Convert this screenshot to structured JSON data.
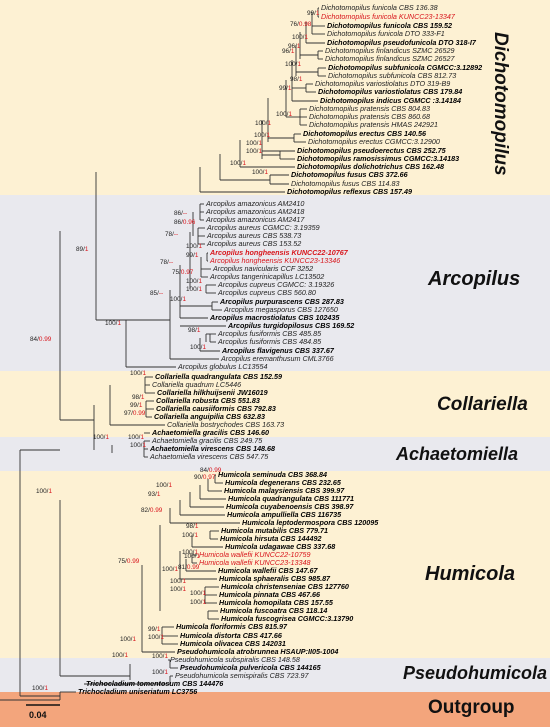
{
  "colors": {
    "band_dichotomopilus": "#fdf1d3",
    "band_arcopilus": "#e9e9ee",
    "band_collariella": "#fdf1d3",
    "band_achaetomiella": "#e9e9ee",
    "band_humicola": "#fdf1d3",
    "band_pseudohumicola": "#e9e9ee",
    "band_outgroup": "#f3a57c",
    "new_taxa": "#d8141b",
    "support_second": "#d8141b",
    "branch": "#333333"
  },
  "clades": [
    {
      "key": "dichotomopilus",
      "name": "Dichotomopilus"
    },
    {
      "key": "arcopilus",
      "name": "Arcopilus"
    },
    {
      "key": "collariella",
      "name": "Collariella"
    },
    {
      "key": "achaetomiella",
      "name": "Achaetomiella"
    },
    {
      "key": "humicola",
      "name": "Humicola"
    },
    {
      "key": "pseudohumicola",
      "name": "Pseudohumicola"
    },
    {
      "key": "outgroup",
      "name": "Outgroup"
    }
  ],
  "scale_bar": {
    "label": "0.04"
  },
  "taxa": [
    {
      "label": "Dichotomopilus funicola CBS 136.38",
      "style": ""
    },
    {
      "label": "Dichotomopilus funicola KUNCC23-13347",
      "style": "r"
    },
    {
      "label": "Dichotomopilus funicola CBS 159.52",
      "style": "b"
    },
    {
      "label": "Dichotomopilus funicola DTO 333-F1",
      "style": ""
    },
    {
      "label": "Dichotomopilus pseudofunicola DTO 318-I7",
      "style": "b"
    },
    {
      "label": "Dichotomopilus finlandicus SZMC 26529",
      "style": ""
    },
    {
      "label": "Dichotomopilus finlandicus SZMC 26527",
      "style": ""
    },
    {
      "label": "Dichotomopilus subfunicola CGMCC:3.12892",
      "style": "b"
    },
    {
      "label": "Dichotomopilus subfunicola CBS 812.73",
      "style": ""
    },
    {
      "label": "Dichotomopilus variostiolatus DTO 319-B9",
      "style": ""
    },
    {
      "label": "Dichotomopilus variostiolatus CBS 179.84",
      "style": "b"
    },
    {
      "label": "Dichotomopilus indicus CGMCC :3.14184",
      "style": "b"
    },
    {
      "label": "Dichotomopilus pratensis CBS 804.83",
      "style": ""
    },
    {
      "label": "Dichotomopilus pratensis CBS 860.68",
      "style": ""
    },
    {
      "label": "Dichotomopilus pratensis HMAS 242921",
      "style": ""
    },
    {
      "label": "Dichotomopilus erectus CBS 140.56",
      "style": "b"
    },
    {
      "label": "Dichotomopilus erectus CGMCC:3.12900",
      "style": ""
    },
    {
      "label": "Dichotomopilus pseudoerectus CBS 252.75",
      "style": "b"
    },
    {
      "label": "Dichotomopilus ramosissimus CGMCC:3.14183",
      "style": "b"
    },
    {
      "label": "Dichotomopilus dolichotrichus CBS 162.48",
      "style": "b"
    },
    {
      "label": "Dichotomopilus fusus CBS 372.66",
      "style": "b"
    },
    {
      "label": "Dichotomopilus fusus CBS 114.83",
      "style": ""
    },
    {
      "label": "Dichotomopilus reflexus CBS 157.49",
      "style": "b"
    },
    {
      "label": "Arcopilus amazonicus AM2410",
      "style": ""
    },
    {
      "label": "Arcopilus amazonicus AM2418",
      "style": ""
    },
    {
      "label": "Arcopilus amazonicus AM2417",
      "style": ""
    },
    {
      "label": "Arcopilus aureus CGMCC: 3.19359",
      "style": ""
    },
    {
      "label": "Arcopilus aureus CBS 538.73",
      "style": ""
    },
    {
      "label": "Arcopilus aureus CBS 153.52",
      "style": ""
    },
    {
      "label": "Arcopilus hongheensis KUNCC22-10767",
      "style": "b r"
    },
    {
      "label": "Arcopilus hongheensis KUNCC23-13346",
      "style": "r"
    },
    {
      "label": "Arcopilus navicularis CCF 3252",
      "style": ""
    },
    {
      "label": "Arcopilus tangerinicapillus LC13502",
      "style": ""
    },
    {
      "label": "Arcopilus cupreus CGMCC: 3.19326",
      "style": ""
    },
    {
      "label": "Arcopilus cupreus CBS 560.80",
      "style": ""
    },
    {
      "label": "Arcopilus purpurascens CBS 287.83",
      "style": "b"
    },
    {
      "label": "Arcopilus megasporus CBS 127650",
      "style": ""
    },
    {
      "label": "Arcopilus macrostiolatus CBS 102435",
      "style": "b"
    },
    {
      "label": "Arcopilus turgidopilosus CBS 169.52",
      "style": "b"
    },
    {
      "label": "Arcopilus fusiformis CBS 485.85",
      "style": ""
    },
    {
      "label": "Arcopilus fusiformis CBS 484.85",
      "style": ""
    },
    {
      "label": "Arcopilus flavigenus CBS 337.67",
      "style": "b"
    },
    {
      "label": "Arcopilus eremanthusum CML3766",
      "style": ""
    },
    {
      "label": "Arcopilus globulus LC13554",
      "style": ""
    },
    {
      "label": "Collariella quadrangulata CBS 152.59",
      "style": "b"
    },
    {
      "label": "Collariella quadrum LC5446",
      "style": ""
    },
    {
      "label": "Collariella hilkhuijsenii JW16019",
      "style": "b"
    },
    {
      "label": "Collariella robusta CBS 551.83",
      "style": "b"
    },
    {
      "label": "Collariella causiiformis CBS 792.83",
      "style": "b"
    },
    {
      "label": "Collariella anguipilia CBS 632.83",
      "style": "b"
    },
    {
      "label": "Collariella bostrychodes CBS 163.73",
      "style": ""
    },
    {
      "label": "Achaetomiella gracilis CBS 146.60",
      "style": "b"
    },
    {
      "label": "Achaetomiella gracilis CBS 249.75",
      "style": ""
    },
    {
      "label": "Achaetomiella virescens CBS 148.68",
      "style": "b"
    },
    {
      "label": "Achaetomiella virescens CBS 547.75",
      "style": ""
    },
    {
      "label": "Humicola seminuda CBS 368.84",
      "style": "b"
    },
    {
      "label": "Humicola degenerans CBS 232.65",
      "style": "b"
    },
    {
      "label": "Humicola malaysiensis CBS 399.97",
      "style": "b"
    },
    {
      "label": "Humicola quadrangulata CBS 111771",
      "style": "b"
    },
    {
      "label": "Humicola cuyabenoensis CBS 398.97",
      "style": "b"
    },
    {
      "label": "Humicola ampulliella CBS 116735",
      "style": "b"
    },
    {
      "label": "Humicola leptodermospora CBS 120095",
      "style": "b"
    },
    {
      "label": "Humicola mutabilis CBS 779.71",
      "style": "b"
    },
    {
      "label": "Humicola hirsuta CBS 144492",
      "style": "b"
    },
    {
      "label": "Humicola udagawae CBS 337.68",
      "style": "b"
    },
    {
      "label": "Humicola wallefii KUNCC22-10759",
      "style": "r"
    },
    {
      "label": "Humicola wallefii KUNCC23-13348",
      "style": "r"
    },
    {
      "label": "Humicola wallefii CBS 147.67",
      "style": "b"
    },
    {
      "label": "Humicola sphaeralis CBS 985.87",
      "style": "b"
    },
    {
      "label": "Humicola christenseniae CBS 127760",
      "style": "b"
    },
    {
      "label": "Humicola pinnata CBS 467.66",
      "style": "b"
    },
    {
      "label": "Humicola homopilata CBS 157.55",
      "style": "b"
    },
    {
      "label": "Humicola fuscoatra CBS 118.14",
      "style": "b"
    },
    {
      "label": "Humicola fuscogrisea CGMCC:3.13790",
      "style": "b"
    },
    {
      "label": "Humicola floriformis CBS 815.97",
      "style": "b"
    },
    {
      "label": "Humicola distorta CBS 417.66",
      "style": "b"
    },
    {
      "label": "Humicola olivacea CBS 142031",
      "style": "b"
    },
    {
      "label": "Pseudohumicola atrobrunnea HSAUP:II05-1004",
      "style": "b"
    },
    {
      "label": "Pseudohumicola subspiralis CBS 148.58",
      "style": ""
    },
    {
      "label": "Pseudohumicola pulvericola CBS 144165",
      "style": "b"
    },
    {
      "label": "Pseudohumicola semispiralis CBS 723.97",
      "style": ""
    },
    {
      "label": "Trichocladium tomentosum CBS 144476",
      "style": "b"
    },
    {
      "label": "Trichocladium uniseriatum LC3756",
      "style": "b"
    }
  ],
  "supports": [
    {
      "a": "99/",
      "b": "1"
    },
    {
      "a": "76/",
      "b": "0.98"
    },
    {
      "a": "100/",
      "b": "1"
    },
    {
      "a": "96/",
      "b": "1"
    },
    {
      "a": "96/",
      "b": "1"
    },
    {
      "a": "100/",
      "b": "1"
    },
    {
      "a": "98/",
      "b": "1"
    },
    {
      "a": "99/",
      "b": "1"
    },
    {
      "a": "100/",
      "b": "1"
    },
    {
      "a": "100/",
      "b": "1"
    },
    {
      "a": "100/",
      "b": "1"
    },
    {
      "a": "100/",
      "b": "1"
    },
    {
      "a": "100/",
      "b": "1"
    },
    {
      "a": "100/",
      "b": "1"
    },
    {
      "a": "100/",
      "b": "1"
    },
    {
      "a": "86/",
      "b": "--"
    },
    {
      "a": "86/",
      "b": "0.96"
    },
    {
      "a": "78/",
      "b": "--"
    },
    {
      "a": "100/",
      "b": "1"
    },
    {
      "a": "99/",
      "b": "1"
    },
    {
      "a": "78/",
      "b": "--"
    },
    {
      "a": "75/",
      "b": "0.97"
    },
    {
      "a": "100/",
      "b": "1"
    },
    {
      "a": "100/",
      "b": "1"
    },
    {
      "a": "85/",
      "b": "--"
    },
    {
      "a": "100/",
      "b": "1"
    },
    {
      "a": "98/",
      "b": "1"
    },
    {
      "a": "100/",
      "b": "1"
    },
    {
      "a": "100/",
      "b": "1"
    },
    {
      "a": "89/",
      "b": "1"
    },
    {
      "a": "84/",
      "b": "0.99"
    },
    {
      "a": "100/",
      "b": "1"
    },
    {
      "a": "98/",
      "b": "1"
    },
    {
      "a": "99/",
      "b": "1"
    },
    {
      "a": "97/",
      "b": "0.99"
    },
    {
      "a": "100/",
      "b": "1"
    },
    {
      "a": "100/",
      "b": "1"
    },
    {
      "a": "100/",
      "b": "1"
    },
    {
      "a": "84/",
      "b": "0.99"
    },
    {
      "a": "90/",
      "b": "0.97"
    },
    {
      "a": "100/",
      "b": "1"
    },
    {
      "a": "93/",
      "b": "1"
    },
    {
      "a": "82/",
      "b": "0.99"
    },
    {
      "a": "98/",
      "b": "1"
    },
    {
      "a": "100/",
      "b": "1"
    },
    {
      "a": "100/",
      "b": "1"
    },
    {
      "a": "100/",
      "b": "1"
    },
    {
      "a": "81/",
      "b": "0.99"
    },
    {
      "a": "100/",
      "b": "1"
    },
    {
      "a": "75/",
      "b": "0.99"
    },
    {
      "a": "100/",
      "b": "1"
    },
    {
      "a": "100/",
      "b": "1"
    },
    {
      "a": "100/",
      "b": "1"
    },
    {
      "a": "100/",
      "b": "1"
    },
    {
      "a": "99/",
      "b": "1"
    },
    {
      "a": "100/",
      "b": "1"
    },
    {
      "a": "100/",
      "b": "1"
    },
    {
      "a": "100/",
      "b": "1"
    },
    {
      "a": "100/",
      "b": "1"
    },
    {
      "a": "100/",
      "b": "1"
    },
    {
      "a": "100/",
      "b": "1"
    },
    {
      "a": "100/",
      "b": "1"
    }
  ]
}
